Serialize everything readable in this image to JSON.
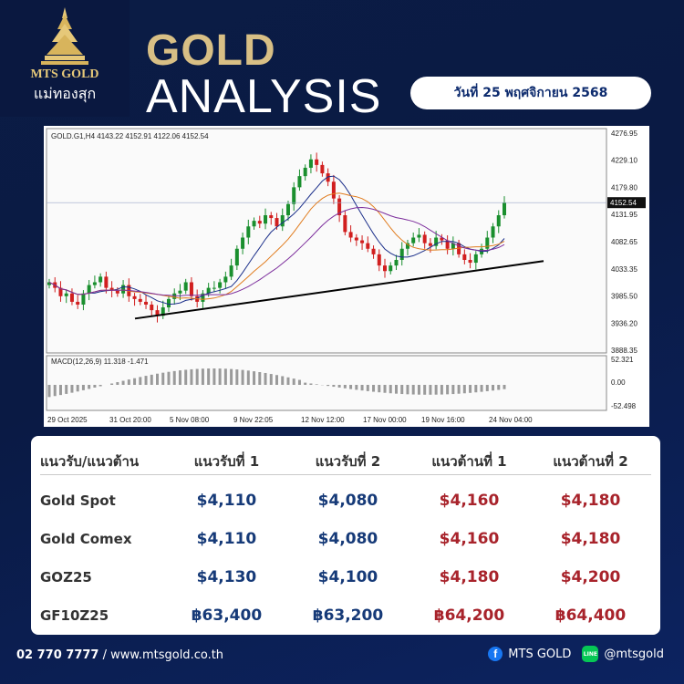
{
  "brand": {
    "name_en": "MTS GOLD",
    "name_th": "แม่ทองสุก"
  },
  "header": {
    "title_line1": "GOLD",
    "title_line2": "ANALYSIS",
    "date": "วันที่ 25 พฤศจิกายน 2568"
  },
  "chart": {
    "info": "GOLD.G1,H4  4143.22 4152.91 4122.06 4152.54",
    "price_ticks": [
      "4276.95",
      "4229.10",
      "4179.80",
      "4131.95",
      "4082.65",
      "4033.35",
      "3985.50",
      "3936.20",
      "3888.35"
    ],
    "current_price": "4152.54",
    "macd_label": "MACD(12,26,9) 11.318 -1.471",
    "macd_ticks": [
      "52.321",
      "0.00",
      "-52.498"
    ],
    "time_ticks": [
      "29 Oct 2025",
      "31 Oct 20:00",
      "5 Nov 08:00",
      "9 Nov 22:05",
      "12 Nov 12:00",
      "17 Nov 00:00",
      "19 Nov 16:00",
      "24 Nov 04:00"
    ]
  },
  "table": {
    "headers": [
      "แนวรับ/แนวต้าน",
      "แนวรับที่ 1",
      "แนวรับที่ 2",
      "แนวต้านที่ 1",
      "แนวต้านที่ 2"
    ],
    "rows": [
      {
        "name": "Gold Spot",
        "s1": "$4,110",
        "s2": "$4,080",
        "r1": "$4,160",
        "r2": "$4,180"
      },
      {
        "name": "Gold Comex",
        "s1": "$4,110",
        "s2": "$4,080",
        "r1": "$4,160",
        "r2": "$4,180"
      },
      {
        "name": "GOZ25",
        "s1": "$4,130",
        "s2": "$4,100",
        "r1": "$4,180",
        "r2": "$4,200"
      },
      {
        "name": "GF10Z25",
        "s1": "฿63,400",
        "s2": "฿63,200",
        "r1": "฿64,200",
        "r2": "฿64,400"
      }
    ]
  },
  "footer": {
    "phone": "02 770 7777",
    "website": "www.mtsgold.co.th",
    "facebook": "MTS GOLD",
    "line": "@mtsgold",
    "line_icon_text": "LINE"
  },
  "colors": {
    "support": "#163a78",
    "resistance": "#a8232b",
    "title_gold": "#d8bf85",
    "background": "#0b1c45"
  }
}
